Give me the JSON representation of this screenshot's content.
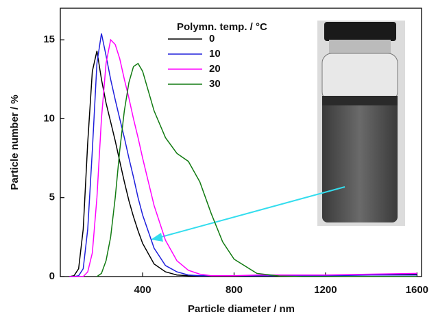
{
  "chart_data": {
    "type": "line",
    "xlabel": "Particle diameter / nm",
    "ylabel": "Particle number / %",
    "legend_title": "Polymn. temp. / °C",
    "xlim": [
      40,
      1620
    ],
    "ylim": [
      0,
      17
    ],
    "xticks": [
      400,
      800,
      1200,
      1600
    ],
    "yticks": [
      0,
      5,
      10,
      15
    ],
    "x": [
      80,
      100,
      120,
      140,
      160,
      180,
      200,
      220,
      240,
      260,
      280,
      300,
      320,
      340,
      360,
      380,
      400,
      450,
      500,
      550,
      600,
      650,
      700,
      750,
      800,
      900,
      1000,
      1100,
      1200,
      1400,
      1600
    ],
    "series": [
      {
        "name": "0",
        "color": "#000000",
        "values": [
          0,
          0.05,
          0.5,
          3,
          8.5,
          13,
          14.3,
          12.5,
          11,
          9.8,
          8.6,
          7.3,
          6,
          4.8,
          3.8,
          2.9,
          2.1,
          0.8,
          0.3,
          0.1,
          0.05,
          0.05,
          0.05,
          0.05,
          0.05,
          0.05,
          0.05,
          0.05,
          0.1,
          0.1,
          0.15
        ]
      },
      {
        "name": "10",
        "color": "#1f1fdc",
        "values": [
          0,
          0,
          0.05,
          0.5,
          3,
          8,
          13.5,
          15.4,
          14,
          12.5,
          11.2,
          10,
          8.8,
          7.5,
          6.3,
          5,
          3.9,
          1.8,
          0.7,
          0.3,
          0.1,
          0.05,
          0.05,
          0.05,
          0.05,
          0.05,
          0.05,
          0.05,
          0.05,
          0.1,
          0.1
        ]
      },
      {
        "name": "20",
        "color": "#ff00ff",
        "values": [
          0,
          0,
          0,
          0,
          0.3,
          1.5,
          5,
          10,
          13.5,
          15,
          14.7,
          13.8,
          12.5,
          11.3,
          10,
          8.8,
          7.5,
          4.5,
          2.3,
          1,
          0.4,
          0.15,
          0.05,
          0.05,
          0.05,
          0.1,
          0.1,
          0.1,
          0.1,
          0.15,
          0.2
        ]
      },
      {
        "name": "30",
        "color": "#117a11",
        "values": [
          null,
          null,
          null,
          null,
          null,
          null,
          0,
          0.2,
          1,
          2.5,
          5,
          8,
          10.5,
          12.3,
          13.3,
          13.5,
          13,
          10.5,
          8.8,
          7.8,
          7.3,
          6,
          4,
          2.2,
          1.1,
          0.2,
          0.03,
          0,
          0,
          0,
          0
        ]
      }
    ]
  }
}
